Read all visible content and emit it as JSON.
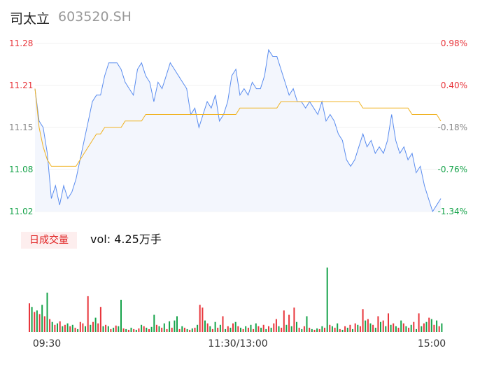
{
  "header": {
    "name": "司太立",
    "code": "603520.SH"
  },
  "volume_panel": {
    "badge_label": "日成交量",
    "vol_prefix": "vol:",
    "vol_value": "4.25万手"
  },
  "colors": {
    "up": "#e8353b",
    "down": "#16a34a",
    "price_line": "#5b8def",
    "avg_line": "#f0b323",
    "neutral": "#8a8a8a",
    "fill": "#f3f6fd"
  },
  "chart_data": [
    {
      "type": "line",
      "title": "",
      "y_left_ticks": [
        "11.28",
        "11.21",
        "11.15",
        "11.08",
        "11.02"
      ],
      "y_right_ticks": [
        "0.98%",
        "0.40%",
        "-0.18%",
        "-0.76%",
        "-1.34%"
      ],
      "ylim": [
        11.02,
        11.28
      ],
      "x_ticks": [
        "09:30",
        "11:30/13:00",
        "15:00"
      ],
      "series": [
        {
          "key": "price",
          "values": [
            11.21,
            11.16,
            11.15,
            11.11,
            11.04,
            11.06,
            11.03,
            11.06,
            11.04,
            11.05,
            11.07,
            11.1,
            11.13,
            11.16,
            11.19,
            11.2,
            11.2,
            11.23,
            11.25,
            11.25,
            11.25,
            11.24,
            11.22,
            11.21,
            11.2,
            11.24,
            11.25,
            11.23,
            11.22,
            11.19,
            11.22,
            11.21,
            11.23,
            11.25,
            11.24,
            11.23,
            11.22,
            11.21,
            11.17,
            11.18,
            11.15,
            11.17,
            11.19,
            11.18,
            11.2,
            11.16,
            11.17,
            11.19,
            11.23,
            11.24,
            11.2,
            11.21,
            11.2,
            11.22,
            11.21,
            11.21,
            11.23,
            11.27,
            11.26,
            11.26,
            11.24,
            11.22,
            11.2,
            11.21,
            11.19,
            11.19,
            11.18,
            11.19,
            11.18,
            11.17,
            11.19,
            11.16,
            11.17,
            11.16,
            11.14,
            11.13,
            11.1,
            11.09,
            11.1,
            11.12,
            11.14,
            11.12,
            11.13,
            11.11,
            11.12,
            11.11,
            11.13,
            11.17,
            11.13,
            11.11,
            11.12,
            11.1,
            11.11,
            11.08,
            11.09,
            11.06,
            11.04,
            11.02,
            11.03,
            11.04
          ]
        },
        {
          "key": "avg",
          "values": [
            11.21,
            11.15,
            11.12,
            11.1,
            11.09,
            11.09,
            11.09,
            11.09,
            11.09,
            11.09,
            11.09,
            11.1,
            11.11,
            11.12,
            11.13,
            11.14,
            11.14,
            11.15,
            11.15,
            11.15,
            11.15,
            11.15,
            11.16,
            11.16,
            11.16,
            11.16,
            11.16,
            11.17,
            11.17,
            11.17,
            11.17,
            11.17,
            11.17,
            11.17,
            11.17,
            11.17,
            11.17,
            11.17,
            11.17,
            11.17,
            11.17,
            11.17,
            11.17,
            11.17,
            11.17,
            11.17,
            11.17,
            11.17,
            11.17,
            11.17,
            11.18,
            11.18,
            11.18,
            11.18,
            11.18,
            11.18,
            11.18,
            11.18,
            11.18,
            11.18,
            11.19,
            11.19,
            11.19,
            11.19,
            11.19,
            11.19,
            11.19,
            11.19,
            11.19,
            11.19,
            11.19,
            11.19,
            11.19,
            11.19,
            11.19,
            11.19,
            11.19,
            11.19,
            11.19,
            11.19,
            11.18,
            11.18,
            11.18,
            11.18,
            11.18,
            11.18,
            11.18,
            11.18,
            11.18,
            11.18,
            11.18,
            11.18,
            11.17,
            11.17,
            11.17,
            11.17,
            11.17,
            11.17,
            11.17,
            11.16
          ]
        }
      ]
    },
    {
      "type": "bar",
      "title": "",
      "values": [
        40,
        35,
        28,
        30,
        25,
        38,
        22,
        55,
        18,
        14,
        10,
        12,
        15,
        8,
        10,
        12,
        8,
        10,
        6,
        4,
        14,
        12,
        8,
        50,
        10,
        14,
        20,
        12,
        35,
        8,
        10,
        8,
        4,
        6,
        9,
        8,
        45,
        5,
        4,
        3,
        6,
        4,
        3,
        5,
        10,
        8,
        6,
        4,
        7,
        24,
        10,
        8,
        6,
        12,
        4,
        15,
        6,
        16,
        22,
        4,
        8,
        6,
        4,
        3,
        5,
        6,
        10,
        38,
        34,
        16,
        12,
        8,
        4,
        14,
        6,
        10,
        22,
        4,
        8,
        6,
        12,
        14,
        8,
        6,
        4,
        8,
        6,
        10,
        4,
        12,
        8,
        6,
        10,
        4,
        8,
        6,
        12,
        18,
        8,
        6,
        30,
        10,
        24,
        8,
        34,
        14,
        6,
        4,
        8,
        22,
        6,
        4,
        3,
        5,
        4,
        8,
        6,
        90,
        10,
        8,
        6,
        12,
        4,
        3,
        8,
        6,
        10,
        4,
        12,
        10,
        8,
        32,
        16,
        18,
        12,
        10,
        6,
        22,
        14,
        16,
        8,
        26,
        10,
        12,
        8,
        6,
        16,
        12,
        8,
        6,
        10,
        14,
        4,
        26,
        8,
        12,
        14,
        20,
        18,
        10,
        16,
        8,
        12
      ],
      "colors": [
        "r",
        "g",
        "r",
        "g",
        "r",
        "g",
        "r",
        "g",
        "r",
        "g",
        "r",
        "g",
        "r",
        "g",
        "r",
        "g",
        "r",
        "g",
        "r",
        "g",
        "r",
        "r",
        "g",
        "r",
        "g",
        "r",
        "g",
        "r",
        "r",
        "g",
        "r",
        "g",
        "r",
        "g",
        "r",
        "g",
        "g",
        "r",
        "g",
        "r",
        "g",
        "r",
        "g",
        "r",
        "g",
        "r",
        "g",
        "r",
        "g",
        "g",
        "r",
        "g",
        "r",
        "g",
        "r",
        "g",
        "r",
        "g",
        "g",
        "r",
        "g",
        "r",
        "g",
        "r",
        "g",
        "r",
        "g",
        "r",
        "r",
        "g",
        "r",
        "g",
        "r",
        "g",
        "r",
        "g",
        "r",
        "g",
        "r",
        "g",
        "r",
        "g",
        "r",
        "g",
        "r",
        "g",
        "r",
        "g",
        "r",
        "g",
        "r",
        "g",
        "r",
        "g",
        "r",
        "g",
        "r",
        "r",
        "g",
        "r",
        "r",
        "g",
        "r",
        "g",
        "r",
        "g",
        "r",
        "g",
        "r",
        "g",
        "r",
        "g",
        "r",
        "g",
        "r",
        "g",
        "r",
        "g",
        "r",
        "g",
        "r",
        "g",
        "r",
        "g",
        "r",
        "g",
        "r",
        "g",
        "r",
        "g",
        "r",
        "r",
        "g",
        "r",
        "g",
        "r",
        "g",
        "r",
        "g",
        "r",
        "g",
        "r",
        "g",
        "r",
        "g",
        "r",
        "g",
        "r",
        "g",
        "r",
        "g",
        "r",
        "g",
        "r",
        "g",
        "r",
        "g",
        "r",
        "g",
        "r",
        "g",
        "r",
        "g"
      ]
    }
  ]
}
